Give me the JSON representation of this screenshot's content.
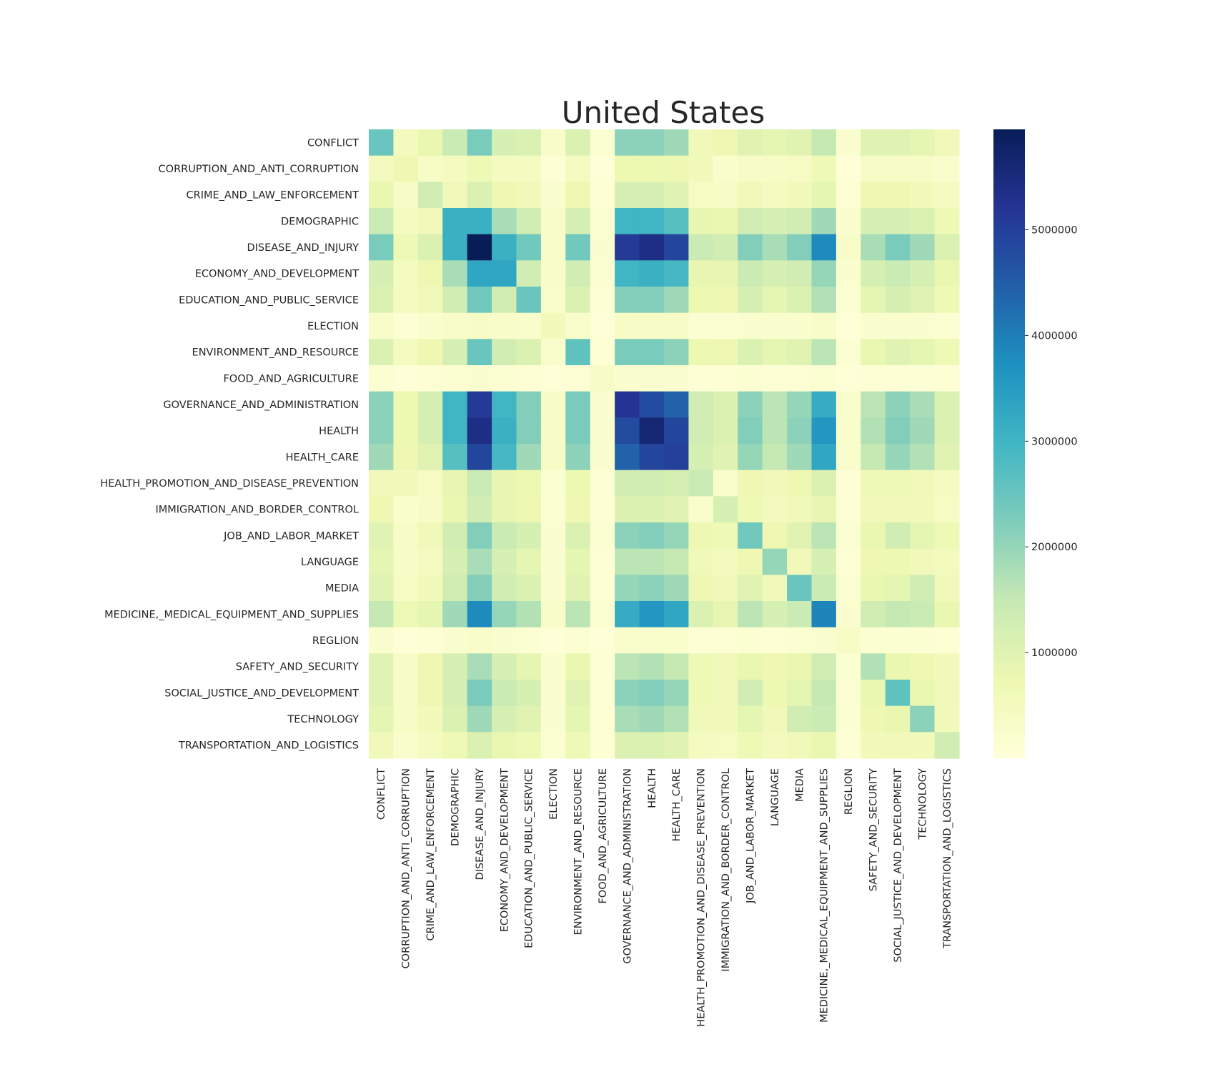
{
  "chart_data": {
    "type": "heatmap",
    "title": "United States",
    "xlabel": "",
    "ylabel": "",
    "colormap": "YlGnBu",
    "colormap_stops": [
      "#ffffd9",
      "#edf8b1",
      "#c7e9b4",
      "#7fcdbb",
      "#41b6c4",
      "#1d91c0",
      "#225ea8",
      "#253494",
      "#081d58"
    ],
    "value_range": [
      0,
      5950000
    ],
    "colorbar_ticks": [
      {
        "value": 1000000,
        "label": "1000000"
      },
      {
        "value": 2000000,
        "label": "2000000"
      },
      {
        "value": 3000000,
        "label": "3000000"
      },
      {
        "value": 4000000,
        "label": "4000000"
      },
      {
        "value": 5000000,
        "label": "5000000"
      }
    ],
    "categories": [
      "CONFLICT",
      "CORRUPTION_AND_ANTI_CORRUPTION",
      "CRIME_AND_LAW_ENFORCEMENT",
      "DEMOGRAPHIC",
      "DISEASE_AND_INJURY",
      "ECONOMY_AND_DEVELOPMENT",
      "EDUCATION_AND_PUBLIC_SERVICE",
      "ELECTION",
      "ENVIRONMENT_AND_RESOURCE",
      "FOOD_AND_AGRICULTURE",
      "GOVERNANCE_AND_ADMINISTRATION",
      "HEALTH",
      "HEALTH_CARE",
      "HEALTH_PROMOTION_AND_DISEASE_PREVENTION",
      "IMMIGRATION_AND_BORDER_CONTROL",
      "JOB_AND_LABOR_MARKET",
      "LANGUAGE",
      "MEDIA",
      "MEDICINE,_MEDICAL_EQUIPMENT_AND_SUPPLIES",
      "REGLION",
      "SAFETY_AND_SECURITY",
      "SOCIAL_JUSTICE_AND_DEVELOPMENT",
      "TECHNOLOGY",
      "TRANSPORTATION_AND_LOGISTICS"
    ],
    "values": [
      [
        2500000,
        500000,
        800000,
        1400000,
        2300000,
        1200000,
        1100000,
        300000,
        1100000,
        150000,
        2100000,
        2100000,
        1900000,
        600000,
        700000,
        1000000,
        900000,
        1000000,
        1500000,
        200000,
        1000000,
        1000000,
        900000,
        600000
      ],
      [
        500000,
        700000,
        350000,
        450000,
        650000,
        450000,
        450000,
        100000,
        450000,
        50000,
        750000,
        750000,
        700000,
        550000,
        250000,
        350000,
        350000,
        400000,
        650000,
        50000,
        350000,
        350000,
        350000,
        250000
      ],
      [
        800000,
        350000,
        1300000,
        600000,
        1100000,
        700000,
        600000,
        200000,
        700000,
        100000,
        1200000,
        1200000,
        1000000,
        400000,
        350000,
        600000,
        450000,
        550000,
        900000,
        100000,
        700000,
        700000,
        550000,
        450000
      ],
      [
        1400000,
        450000,
        600000,
        3100000,
        3100000,
        1800000,
        1300000,
        300000,
        1200000,
        150000,
        3000000,
        3000000,
        2700000,
        850000,
        800000,
        1300000,
        1200000,
        1300000,
        1900000,
        200000,
        1200000,
        1200000,
        1100000,
        650000
      ],
      [
        2300000,
        650000,
        1100000,
        3100000,
        5950000,
        3100000,
        2400000,
        300000,
        2400000,
        200000,
        5100000,
        5400000,
        4900000,
        1400000,
        1300000,
        2200000,
        1800000,
        2200000,
        3800000,
        300000,
        1800000,
        2300000,
        1900000,
        1100000
      ],
      [
        1200000,
        450000,
        700000,
        1800000,
        3300000,
        3300000,
        1300000,
        300000,
        1300000,
        150000,
        3000000,
        3100000,
        2900000,
        850000,
        850000,
        1400000,
        1200000,
        1300000,
        2000000,
        200000,
        1200000,
        1400000,
        1200000,
        800000
      ],
      [
        1100000,
        450000,
        600000,
        1300000,
        2400000,
        1300000,
        2500000,
        250000,
        1100000,
        100000,
        2200000,
        2200000,
        1900000,
        750000,
        700000,
        1200000,
        900000,
        1100000,
        1700000,
        150000,
        900000,
        1200000,
        1000000,
        650000
      ],
      [
        300000,
        100000,
        200000,
        300000,
        350000,
        300000,
        250000,
        550000,
        250000,
        50000,
        350000,
        350000,
        350000,
        150000,
        150000,
        200000,
        200000,
        200000,
        300000,
        50000,
        200000,
        200000,
        200000,
        150000
      ],
      [
        1100000,
        450000,
        700000,
        1200000,
        2500000,
        1300000,
        1100000,
        250000,
        2600000,
        100000,
        2300000,
        2300000,
        2100000,
        750000,
        700000,
        1100000,
        900000,
        1000000,
        1600000,
        150000,
        800000,
        1000000,
        900000,
        650000
      ],
      [
        150000,
        50000,
        100000,
        150000,
        200000,
        150000,
        100000,
        50000,
        100000,
        350000,
        200000,
        200000,
        200000,
        100000,
        100000,
        150000,
        100000,
        100000,
        150000,
        50000,
        100000,
        100000,
        100000,
        100000
      ],
      [
        2100000,
        750000,
        1200000,
        3000000,
        5100000,
        3000000,
        2200000,
        350000,
        2300000,
        200000,
        5200000,
        4800000,
        4400000,
        1300000,
        1100000,
        2100000,
        1600000,
        2000000,
        3200000,
        250000,
        1600000,
        2100000,
        1800000,
        1100000
      ],
      [
        2100000,
        750000,
        1200000,
        3000000,
        5400000,
        3100000,
        2200000,
        350000,
        2300000,
        200000,
        4800000,
        5600000,
        4900000,
        1300000,
        1100000,
        2200000,
        1600000,
        2100000,
        3600000,
        250000,
        1700000,
        2200000,
        1900000,
        1100000
      ],
      [
        1900000,
        700000,
        1000000,
        2700000,
        4900000,
        2900000,
        1900000,
        350000,
        2100000,
        200000,
        4400000,
        4900000,
        5000000,
        1200000,
        1000000,
        2000000,
        1500000,
        1900000,
        3300000,
        250000,
        1500000,
        2000000,
        1700000,
        1000000
      ],
      [
        600000,
        550000,
        400000,
        850000,
        1400000,
        850000,
        750000,
        150000,
        750000,
        100000,
        1300000,
        1300000,
        1200000,
        1400000,
        250000,
        700000,
        600000,
        700000,
        1100000,
        100000,
        650000,
        650000,
        600000,
        450000
      ],
      [
        700000,
        250000,
        350000,
        800000,
        1300000,
        850000,
        700000,
        150000,
        700000,
        100000,
        1100000,
        1100000,
        1000000,
        250000,
        1200000,
        650000,
        500000,
        600000,
        850000,
        100000,
        600000,
        600000,
        550000,
        400000
      ],
      [
        1000000,
        350000,
        600000,
        1300000,
        2200000,
        1400000,
        1200000,
        200000,
        1100000,
        150000,
        2100000,
        2200000,
        2000000,
        700000,
        650000,
        2400000,
        700000,
        1000000,
        1600000,
        150000,
        800000,
        1300000,
        900000,
        650000
      ],
      [
        900000,
        350000,
        450000,
        1200000,
        1800000,
        1200000,
        900000,
        200000,
        900000,
        100000,
        1600000,
        1600000,
        1500000,
        600000,
        500000,
        700000,
        2000000,
        600000,
        1200000,
        100000,
        700000,
        750000,
        600000,
        500000
      ],
      [
        1000000,
        400000,
        550000,
        1300000,
        2200000,
        1300000,
        1100000,
        200000,
        1000000,
        100000,
        2000000,
        2100000,
        1900000,
        700000,
        600000,
        1000000,
        600000,
        2500000,
        1400000,
        150000,
        800000,
        900000,
        1300000,
        600000
      ],
      [
        1500000,
        650000,
        900000,
        1900000,
        3800000,
        2000000,
        1700000,
        300000,
        1600000,
        150000,
        3200000,
        3600000,
        3300000,
        1100000,
        850000,
        1600000,
        1200000,
        1400000,
        3900000,
        200000,
        1300000,
        1500000,
        1400000,
        800000
      ],
      [
        200000,
        50000,
        100000,
        200000,
        300000,
        200000,
        150000,
        50000,
        150000,
        50000,
        250000,
        250000,
        250000,
        100000,
        100000,
        150000,
        100000,
        150000,
        200000,
        350000,
        150000,
        150000,
        150000,
        100000
      ],
      [
        1000000,
        350000,
        700000,
        1200000,
        1800000,
        1200000,
        900000,
        200000,
        800000,
        100000,
        1600000,
        1700000,
        1500000,
        650000,
        600000,
        800000,
        700000,
        800000,
        1300000,
        150000,
        1700000,
        800000,
        700000,
        550000
      ],
      [
        1000000,
        350000,
        700000,
        1200000,
        2300000,
        1400000,
        1200000,
        200000,
        1000000,
        100000,
        2100000,
        2200000,
        2000000,
        650000,
        600000,
        1300000,
        750000,
        900000,
        1500000,
        150000,
        800000,
        2600000,
        800000,
        600000
      ],
      [
        900000,
        350000,
        550000,
        1100000,
        1900000,
        1200000,
        1000000,
        200000,
        900000,
        100000,
        1800000,
        1900000,
        1700000,
        600000,
        550000,
        900000,
        600000,
        1300000,
        1400000,
        150000,
        700000,
        800000,
        2100000,
        550000
      ],
      [
        600000,
        250000,
        450000,
        650000,
        1100000,
        800000,
        650000,
        150000,
        650000,
        100000,
        1100000,
        1100000,
        1000000,
        450000,
        400000,
        650000,
        500000,
        600000,
        800000,
        100000,
        550000,
        600000,
        550000,
        1300000
      ]
    ]
  }
}
